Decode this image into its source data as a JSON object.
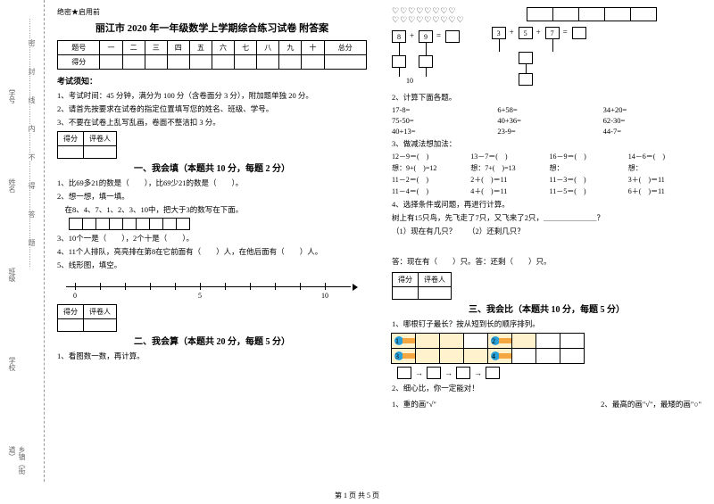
{
  "binding": {
    "l1": "乡镇（街道）",
    "l2": "学校",
    "l3": "班级",
    "l4": "姓名",
    "l5": "学号",
    "cut": "………密………封………线………内………不………得………答………题………"
  },
  "tag": "绝密★启用前",
  "title": "丽江市 2020 年一年级数学上学期综合练习试卷 附答案",
  "score": {
    "h": [
      "题号",
      "一",
      "二",
      "三",
      "四",
      "五",
      "六",
      "七",
      "八",
      "九",
      "十",
      "总分"
    ],
    "r": "得分"
  },
  "noticeH": "考试须知：",
  "notice": [
    "1、考试时间：45 分钟，满分为 100 分（含卷面分 3 分），附加题单独 20 分。",
    "2、请首先按要求在试卷的指定位置填写您的姓名、班级、学号。",
    "3、不要在试卷上乱写乱画，卷面不整洁扣 3 分。"
  ],
  "mini": {
    "a": "得分",
    "b": "评卷人"
  },
  "p1": {
    "title": "一、我会填（本题共 10 分，每题 2 分）",
    "q1": "1、比69多21的数是（　　），比69少21的数是（　　）。",
    "q2": "2、想一想，填一填。",
    "q2b": "　在8、4、7、1、2、3、10中，把大于3的数写在下面。",
    "q3": "3、10个一是（　　），2个十是（　　）。",
    "q4": "4、11个人排队，亮亮排在第8在它前面有（　　）人，在他后面有（　　）人。",
    "q5": "5、线形图，填空。",
    "ticks": [
      "0",
      "",
      "",
      "",
      "",
      "5",
      "",
      "",
      "",
      "",
      "10"
    ]
  },
  "p2": {
    "title": "二、我会算（本题共 20 分，每题 5 分）",
    "q1": "1、看图数一数，再计算。",
    "eq1": {
      "a": "8",
      "op1": "+",
      "b": "9",
      "op2": "=",
      "bl": "10"
    },
    "eq2": {
      "a": "3",
      "op1": "+",
      "b": "5",
      "op2": "+",
      "c": "7",
      "op3": "="
    },
    "q2": "2、计算下面各题。",
    "rows2": [
      "17-8=",
      "6+58=",
      "34+20=",
      "75-50=",
      "40+36=",
      "62-30=",
      "40+13=",
      "23-9=",
      "44-7="
    ],
    "q3": "3、做减法想加法：",
    "rows3a": [
      "12－9＝(　)",
      "13－7＝(　)",
      "16－9＝(　)",
      "14－6＝(　)"
    ],
    "rows3b": [
      "想：9+(　)=12",
      "想：7+(　)=13",
      "想：",
      "想："
    ],
    "rows3c": [
      "11－2＝(　)",
      "2＋(　)＝11",
      "11－3＝(　)",
      "3＋(　)＝11"
    ],
    "rows3d": [
      "11－4＝(　)",
      "4＋(　)＝11",
      "11－5＝(　)",
      "6＋(　)＝11"
    ],
    "q4": "4、选择条件或问题，再进行计算。",
    "q4a": "树上有15只鸟，先飞走了7只，又飞来了2只，＿＿＿＿＿＿＿？",
    "q4b": "（1）现在有几只？　　（2）还剩几只？",
    "ans": "答：现在有（　　）只。答：还剩（　　）只。"
  },
  "p3": {
    "title": "三、我会比（本题共 10 分，每题 5 分）",
    "q1": "1、哪根钉子最长？按从短到长的顺序排列。",
    "nums": [
      "1",
      "2",
      "3",
      "4"
    ],
    "q2": "2、细心比，你一定能对！",
    "q2a": "1、重的画\"√\"",
    "q2b": "2、最高的画\"√\"，最矮的画\"○\""
  },
  "footer": "第 1 页 共 5 页"
}
